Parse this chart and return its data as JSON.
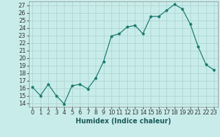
{
  "x": [
    0,
    1,
    2,
    3,
    4,
    5,
    6,
    7,
    8,
    9,
    10,
    11,
    12,
    13,
    14,
    15,
    16,
    17,
    18,
    19,
    20,
    21,
    22,
    23
  ],
  "y": [
    16.1,
    15.0,
    16.5,
    15.0,
    13.9,
    16.3,
    16.5,
    15.9,
    17.3,
    19.5,
    22.9,
    23.2,
    24.1,
    24.3,
    23.2,
    25.5,
    25.5,
    26.3,
    27.1,
    26.5,
    24.5,
    21.5,
    19.1,
    18.4
  ],
  "title": "",
  "xlabel": "Humidex (Indice chaleur)",
  "ylabel": "",
  "ylim": [
    13.5,
    27.5
  ],
  "xlim": [
    -0.5,
    23.5
  ],
  "yticks": [
    14,
    15,
    16,
    17,
    18,
    19,
    20,
    21,
    22,
    23,
    24,
    25,
    26,
    27
  ],
  "xticks": [
    0,
    1,
    2,
    3,
    4,
    5,
    6,
    7,
    8,
    9,
    10,
    11,
    12,
    13,
    14,
    15,
    16,
    17,
    18,
    19,
    20,
    21,
    22,
    23
  ],
  "line_color": "#1a7a6e",
  "bg_color": "#c8ecea",
  "grid_color": "#a8d0ce",
  "tick_fontsize": 6.0,
  "label_fontsize": 7.0
}
